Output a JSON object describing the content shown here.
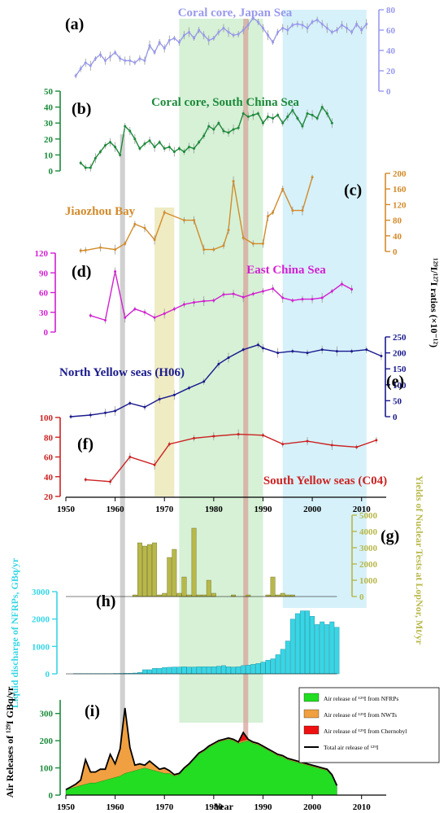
{
  "colors": {
    "a": "#9999ee",
    "b": "#1b8a3a",
    "c": "#d38b2a",
    "d": "#d21fd2",
    "e": "#1a1a8e",
    "f": "#cc2222",
    "g": "#b8b84a",
    "h": "#36d6e6",
    "nfrp": "#22dd22",
    "nwt": "#f0a040",
    "chern": "#ee1111",
    "band_gray": "#c8c8c8",
    "band_yellow": "#ece7b8",
    "band_green": "#cfefcf",
    "band_red": "#d7a39a",
    "band_blue": "#cfeef8"
  },
  "side_label": "¹²⁹I/¹²⁷I ratios (×10⁻¹²)",
  "highlight_bands": [
    [
      1961,
      1962
    ],
    [
      1968,
      1972
    ],
    [
      1973,
      1990
    ],
    [
      1986,
      1987
    ],
    [
      1994,
      2011
    ]
  ],
  "chart_data": [
    {
      "id": "a",
      "panel_label": "(a)",
      "title": "Coral core, Japan Sea",
      "type": "line",
      "ylim": [
        0,
        80
      ],
      "yticks": [
        0,
        20,
        40,
        60,
        80
      ],
      "axis_side": "right",
      "error_bars": true,
      "x": [
        1952,
        1953,
        1954,
        1955,
        1956,
        1957,
        1958,
        1959,
        1960,
        1961,
        1962,
        1963,
        1964,
        1965,
        1966,
        1967,
        1968,
        1969,
        1970,
        1971,
        1972,
        1973,
        1974,
        1975,
        1976,
        1977,
        1978,
        1979,
        1980,
        1981,
        1982,
        1983,
        1984,
        1985,
        1986,
        1987,
        1988,
        1989,
        1990,
        1991,
        1992,
        1993,
        1994,
        1995,
        1996,
        1997,
        1998,
        1999,
        2000,
        2001,
        2002,
        2003,
        2004,
        2005,
        2006,
        2007,
        2008,
        2009,
        2010,
        2011
      ],
      "y": [
        15,
        22,
        28,
        25,
        32,
        36,
        30,
        34,
        38,
        32,
        30,
        30,
        28,
        32,
        30,
        45,
        38,
        48,
        42,
        50,
        52,
        48,
        55,
        58,
        52,
        60,
        55,
        50,
        52,
        58,
        62,
        58,
        55,
        56,
        60,
        65,
        72,
        68,
        62,
        55,
        48,
        58,
        62,
        60,
        65,
        66,
        65,
        62,
        68,
        70,
        66,
        62,
        58,
        60,
        65,
        62,
        58,
        66,
        60,
        66
      ]
    },
    {
      "id": "b",
      "panel_label": "(b)",
      "title": "Coral core, South China Sea",
      "type": "line",
      "ylim": [
        0,
        50
      ],
      "yticks": [
        0,
        10,
        20,
        30,
        40,
        50
      ],
      "axis_side": "left",
      "error_bars": true,
      "x": [
        1953,
        1954,
        1955,
        1956,
        1957,
        1958,
        1959,
        1960,
        1961,
        1962,
        1963,
        1964,
        1965,
        1966,
        1967,
        1968,
        1969,
        1970,
        1971,
        1972,
        1973,
        1974,
        1975,
        1976,
        1977,
        1978,
        1979,
        1980,
        1981,
        1982,
        1983,
        1984,
        1985,
        1986,
        1987,
        1988,
        1989,
        1990,
        1991,
        1992,
        1993,
        1994,
        1995,
        1996,
        1997,
        1998,
        1999,
        2000,
        2001,
        2002,
        2003,
        2004
      ],
      "y": [
        5,
        2,
        2,
        8,
        12,
        16,
        18,
        15,
        10,
        28,
        25,
        20,
        14,
        17,
        19,
        15,
        18,
        14,
        15,
        12,
        14,
        12,
        15,
        14,
        18,
        22,
        28,
        26,
        30,
        25,
        24,
        26,
        27,
        36,
        34,
        35,
        36,
        30,
        34,
        33,
        35,
        30,
        34,
        38,
        33,
        28,
        36,
        35,
        33,
        40,
        36,
        30
      ]
    },
    {
      "id": "c",
      "panel_label": "(c)",
      "title": "Jiaozhou Bay",
      "type": "line",
      "ylim": [
        0,
        200
      ],
      "yticks": [
        0,
        40,
        80,
        120,
        160,
        200
      ],
      "axis_side": "right",
      "error_bars": true,
      "x": [
        1953,
        1954,
        1957,
        1960,
        1962,
        1964,
        1966,
        1968,
        1970,
        1974,
        1976,
        1978,
        1980,
        1982,
        1983,
        1984,
        1986,
        1988,
        1990,
        1991,
        1992,
        1994,
        1996,
        1998,
        2000
      ],
      "y": [
        2,
        3,
        10,
        5,
        20,
        70,
        60,
        30,
        100,
        80,
        80,
        5,
        5,
        15,
        55,
        180,
        35,
        20,
        20,
        90,
        100,
        160,
        105,
        105,
        190
      ]
    },
    {
      "id": "d",
      "panel_label": "(d)",
      "title": "East China Sea",
      "type": "line",
      "ylim": [
        0,
        120
      ],
      "yticks": [
        0,
        30,
        60,
        90,
        120
      ],
      "axis_side": "left",
      "error_bars": true,
      "x": [
        1955,
        1958,
        1960,
        1962,
        1964,
        1966,
        1968,
        1970,
        1972,
        1974,
        1976,
        1978,
        1980,
        1982,
        1984,
        1986,
        1988,
        1990,
        1992,
        1994,
        1996,
        1998,
        2000,
        2002,
        2004,
        2006,
        2008
      ],
      "y": [
        25,
        18,
        92,
        22,
        35,
        30,
        22,
        28,
        35,
        42,
        45,
        47,
        48,
        57,
        58,
        53,
        58,
        62,
        66,
        52,
        48,
        50,
        50,
        52,
        62,
        73,
        65
      ]
    },
    {
      "id": "e",
      "panel_label": "(e)",
      "title": "North Yellow seas (H06)",
      "type": "line",
      "ylim": [
        0,
        250
      ],
      "yticks": [
        0,
        50,
        100,
        150,
        200,
        250
      ],
      "axis_side": "right",
      "error_bars": true,
      "x": [
        1951,
        1955,
        1958,
        1960,
        1963,
        1966,
        1969,
        1972,
        1975,
        1978,
        1981,
        1983,
        1986,
        1989,
        1990,
        1993,
        1996,
        1999,
        2002,
        2005,
        2008,
        2011,
        2014
      ],
      "y": [
        0,
        5,
        12,
        18,
        42,
        30,
        55,
        68,
        90,
        110,
        165,
        185,
        210,
        225,
        215,
        200,
        205,
        200,
        210,
        205,
        205,
        210,
        190
      ]
    },
    {
      "id": "f",
      "panel_label": "(f)",
      "title": "South Yellow seas (C04)",
      "type": "line",
      "ylim": [
        20,
        100
      ],
      "yticks": [
        20,
        40,
        60,
        80,
        100
      ],
      "axis_side": "left",
      "error_bars": true,
      "x": [
        1954,
        1959,
        1963,
        1968,
        1971,
        1976,
        1980,
        1985,
        1990,
        1994,
        1999,
        2004,
        2009,
        2013
      ],
      "y": [
        37,
        35,
        60,
        52,
        73,
        79,
        81,
        83,
        82,
        73,
        76,
        72,
        70,
        77
      ]
    },
    {
      "id": "g",
      "panel_label": "(g)",
      "axis_label": "Yields of Nuclear Tests at LopNor, Mt/yr",
      "type": "bar",
      "ylim": [
        0,
        5000
      ],
      "yticks": [
        0,
        1000,
        2000,
        3000,
        4000,
        5000
      ],
      "axis_side": "right",
      "x": [
        1964,
        1965,
        1966,
        1967,
        1968,
        1969,
        1970,
        1971,
        1972,
        1973,
        1974,
        1975,
        1976,
        1977,
        1978,
        1979,
        1980,
        1981,
        1982,
        1983,
        1984,
        1985,
        1986,
        1987,
        1988,
        1989,
        1990,
        1991,
        1992,
        1993,
        1994,
        1995,
        1996
      ],
      "values": [
        100,
        3300,
        3100,
        3200,
        3300,
        100,
        200,
        2400,
        2900,
        200,
        1200,
        100,
        4200,
        100,
        100,
        1000,
        200,
        0,
        0,
        0,
        100,
        0,
        0,
        100,
        0,
        0,
        0,
        100,
        1200,
        100,
        200,
        100,
        100
      ]
    },
    {
      "id": "h",
      "panel_label": "(h)",
      "axis_label": "Liquid discharge of NFRPs, GBq/yr",
      "type": "bar",
      "ylim": [
        0,
        3000
      ],
      "yticks": [
        0,
        1000,
        2000,
        3000
      ],
      "axis_side": "left",
      "x": [
        1952,
        1953,
        1954,
        1955,
        1956,
        1957,
        1958,
        1959,
        1960,
        1961,
        1962,
        1963,
        1964,
        1965,
        1966,
        1967,
        1968,
        1969,
        1970,
        1971,
        1972,
        1973,
        1974,
        1975,
        1976,
        1977,
        1978,
        1979,
        1980,
        1981,
        1982,
        1983,
        1984,
        1985,
        1986,
        1987,
        1988,
        1989,
        1990,
        1991,
        1992,
        1993,
        1994,
        1995,
        1996,
        1997,
        1998,
        1999,
        2000,
        2001,
        2002,
        2003,
        2004,
        2005
      ],
      "values": [
        10,
        10,
        10,
        10,
        10,
        10,
        10,
        10,
        15,
        15,
        20,
        20,
        30,
        50,
        150,
        150,
        200,
        200,
        230,
        240,
        250,
        250,
        260,
        250,
        250,
        260,
        260,
        260,
        260,
        280,
        300,
        260,
        250,
        260,
        300,
        320,
        350,
        380,
        430,
        500,
        550,
        700,
        900,
        1200,
        2000,
        2200,
        2300,
        2300,
        2100,
        1800,
        1900,
        1800,
        1900,
        1700
      ]
    },
    {
      "id": "i",
      "panel_label": "(i)",
      "axis_label": "Air Releases of ¹²⁹I GBq/yr",
      "type": "area",
      "xlabel": "Year",
      "ylim": [
        0,
        350
      ],
      "yticks": [
        0,
        100,
        200,
        300
      ],
      "axis_side": "left",
      "x": [
        1950,
        1951,
        1952,
        1953,
        1954,
        1955,
        1956,
        1957,
        1958,
        1959,
        1960,
        1961,
        1962,
        1963,
        1964,
        1965,
        1966,
        1967,
        1968,
        1969,
        1970,
        1971,
        1972,
        1973,
        1974,
        1975,
        1976,
        1977,
        1978,
        1979,
        1980,
        1981,
        1982,
        1983,
        1984,
        1985,
        1986,
        1987,
        1988,
        1989,
        1990,
        1991,
        1992,
        1993,
        1994,
        1995,
        1996,
        1997,
        1998,
        1999,
        2000,
        2001,
        2002,
        2003,
        2004,
        2005
      ],
      "series": [
        {
          "name": "Air release of ¹²⁹I from NFRPs",
          "values": [
            20,
            25,
            30,
            35,
            40,
            45,
            45,
            50,
            55,
            60,
            65,
            70,
            80,
            85,
            90,
            95,
            100,
            95,
            90,
            85,
            80,
            80,
            70,
            75,
            95,
            110,
            130,
            150,
            160,
            175,
            185,
            195,
            200,
            205,
            200,
            190,
            195,
            200,
            190,
            185,
            175,
            165,
            155,
            145,
            140,
            130,
            125,
            120,
            115,
            110,
            105,
            100,
            95,
            90,
            70,
            30
          ]
        },
        {
          "name": "Air release of ¹²⁹I from NWTs",
          "values": [
            0,
            5,
            10,
            20,
            90,
            40,
            40,
            45,
            40,
            90,
            50,
            100,
            240,
            90,
            20,
            20,
            10,
            30,
            20,
            10,
            20,
            10,
            5,
            5,
            5,
            5,
            5,
            5,
            5,
            5,
            5,
            5,
            5,
            5,
            5,
            5,
            5,
            5,
            5,
            5,
            5,
            5,
            5,
            5,
            5,
            5,
            5,
            5,
            5,
            5,
            5,
            5,
            5,
            5,
            5,
            5
          ]
        },
        {
          "name": "Air release of ¹²⁹I from Chernobyl",
          "values": [
            0,
            0,
            0,
            0,
            0,
            0,
            0,
            0,
            0,
            0,
            0,
            0,
            0,
            0,
            0,
            0,
            0,
            0,
            0,
            0,
            0,
            0,
            0,
            0,
            0,
            0,
            0,
            0,
            0,
            0,
            0,
            0,
            0,
            0,
            0,
            0,
            30,
            0,
            0,
            0,
            0,
            0,
            0,
            0,
            0,
            0,
            0,
            0,
            0,
            0,
            0,
            0,
            0,
            0,
            0,
            0
          ]
        }
      ],
      "total_label": "Total air release of ¹²⁹I"
    }
  ],
  "x_axis": {
    "shared_ticks": [
      1950,
      1960,
      1970,
      1980,
      1990,
      2000,
      2010
    ],
    "xlim": [
      1950,
      2015
    ]
  }
}
